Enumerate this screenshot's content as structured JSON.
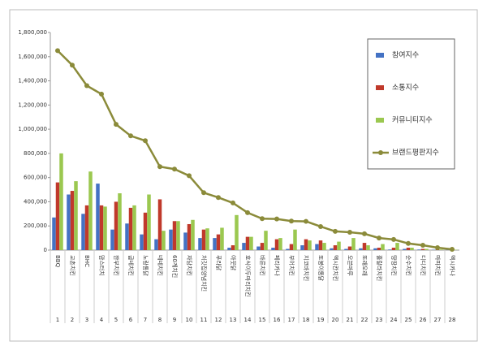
{
  "chart_data": {
    "type": "bar_line",
    "categories": [
      "BBQ",
      "교촌치킨",
      "BHC",
      "맘스터치",
      "한부치킨",
      "굽네치킨",
      "노랑통닭",
      "네네치킨",
      "60계치킨",
      "자담치킨",
      "처갓집양념치킨",
      "푸라닭",
      "아웃닭",
      "호식이두마리치킨",
      "바른치킨",
      "페리카나",
      "부어치킨",
      "지코바치킨",
      "또봉이통닭",
      "멕시칸치킨",
      "오븐마루",
      "또래오래",
      "훌랄라치킨",
      "땅땅치킨",
      "순수치킨",
      "디디치킨",
      "마파치킨",
      "멕시카나"
    ],
    "category_numbers": [
      1,
      2,
      3,
      4,
      5,
      6,
      7,
      8,
      9,
      10,
      11,
      12,
      13,
      14,
      15,
      16,
      17,
      18,
      19,
      20,
      21,
      22,
      23,
      24,
      25,
      26,
      27,
      28
    ],
    "series": [
      {
        "name": "참여지수",
        "color": "#4472c4",
        "kind": "bar",
        "values": [
          270000,
          460000,
          300000,
          550000,
          170000,
          220000,
          130000,
          90000,
          170000,
          145000,
          100000,
          100000,
          20000,
          60000,
          30000,
          20000,
          10000,
          40000,
          50000,
          15000,
          10000,
          15000,
          15000,
          5000,
          10000,
          5000,
          3000,
          2000
        ]
      },
      {
        "name": "소통지수",
        "color": "#c0392b",
        "kind": "bar",
        "values": [
          560000,
          490000,
          370000,
          370000,
          400000,
          350000,
          310000,
          420000,
          240000,
          215000,
          170000,
          130000,
          40000,
          110000,
          60000,
          90000,
          50000,
          90000,
          80000,
          40000,
          30000,
          60000,
          20000,
          20000,
          20000,
          10000,
          5000,
          3000
        ]
      },
      {
        "name": "커뮤니티지수",
        "color": "#9bc850",
        "kind": "bar",
        "values": [
          800000,
          570000,
          650000,
          360000,
          470000,
          370000,
          460000,
          160000,
          240000,
          250000,
          180000,
          185000,
          290000,
          110000,
          160000,
          100000,
          170000,
          80000,
          60000,
          70000,
          100000,
          40000,
          50000,
          60000,
          20000,
          10000,
          5000,
          3000
        ]
      },
      {
        "name": "브랜드평판지수",
        "color": "#8b8b3a",
        "kind": "line",
        "values": [
          1650000,
          1530000,
          1360000,
          1290000,
          1040000,
          945000,
          905000,
          690000,
          670000,
          615000,
          475000,
          435000,
          390000,
          310000,
          260000,
          258000,
          240000,
          238000,
          195000,
          155000,
          148000,
          135000,
          100000,
          88000,
          55000,
          40000,
          20000,
          7000
        ]
      }
    ],
    "ylim": [
      0,
      1800000
    ],
    "yticks": [
      0,
      {
        "value": 200000,
        "label": "200,000"
      },
      {
        "value": 400000,
        "label": "400,000"
      },
      {
        "value": 600000,
        "label": "600,000"
      },
      {
        "value": 800000,
        "label": "800,000"
      },
      {
        "value": 1000000,
        "label": "1,000,000"
      },
      {
        "value": 1200000,
        "label": "1,200,000"
      },
      {
        "value": 1400000,
        "label": "1,400,000"
      },
      {
        "value": 1600000,
        "label": "1,600,000"
      },
      {
        "value": 1800000,
        "label": "1,800,000"
      }
    ],
    "grid": false,
    "legend": "upper right"
  }
}
